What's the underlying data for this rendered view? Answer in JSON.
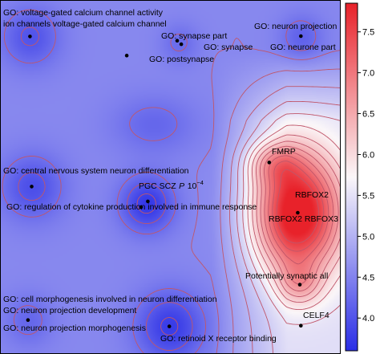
{
  "chart_data": {
    "type": "heatmap",
    "title": "",
    "xlabel": "",
    "ylabel": "",
    "colorbar": {
      "ticks": [
        "4.0",
        "4.5",
        "5.0",
        "5.5",
        "6.0",
        "6.5",
        "7.0",
        "7.5"
      ],
      "range": [
        3.6,
        7.85
      ],
      "low_color": "#2a2ee6",
      "mid_color": "#fbf7f9",
      "high_color": "#e8222a",
      "contour_color": "#c0566a"
    },
    "axes": {
      "x_range": [
        0,
        1
      ],
      "y_range": [
        0,
        1
      ],
      "ticks_shown": false,
      "grid": false
    },
    "points": [
      {
        "id": "vgcc",
        "x": 0.088,
        "y": 0.897,
        "labels": [
          "GO: voltage-gated calcium channel activity",
          "ion channels voltage-gated calcium channel"
        ]
      },
      {
        "id": "synapse-part",
        "x": 0.52,
        "y": 0.885,
        "labels": [
          "GO: synapse part"
        ]
      },
      {
        "id": "synapse",
        "x": 0.532,
        "y": 0.875,
        "labels": [
          "GO: synapse"
        ]
      },
      {
        "id": "postsynapse",
        "x": 0.372,
        "y": 0.843,
        "labels": [
          "GO: postsynapse"
        ]
      },
      {
        "id": "neuron-projection",
        "x": 0.883,
        "y": 0.898,
        "labels": [
          "GO: neuron projection",
          "GO: neurone part"
        ]
      },
      {
        "id": "fmrp",
        "x": 0.79,
        "y": 0.541,
        "labels": [
          "FMRP"
        ]
      },
      {
        "id": "cns-diff",
        "x": 0.093,
        "y": 0.473,
        "labels": [
          "GO: central nervous system neuron differentiation"
        ]
      },
      {
        "id": "pgc-scz",
        "x": 0.434,
        "y": 0.431,
        "labels": [
          "PGC SCZ P 10^-4"
        ]
      },
      {
        "id": "cytokine",
        "x": 0.414,
        "y": 0.415,
        "labels": [
          "GO: regulation of cytokine production involved in immune response"
        ]
      },
      {
        "id": "rbfox2",
        "x": 0.874,
        "y": 0.399,
        "labels": [
          "RBFOX2",
          "RBFOX2 RBFOX3"
        ]
      },
      {
        "id": "synaptic-all",
        "x": 0.88,
        "y": 0.196,
        "labels": [
          "Potentially synaptic all"
        ]
      },
      {
        "id": "morphogenesis",
        "x": 0.082,
        "y": 0.096,
        "labels": [
          "GO: cell morphogenesis involved in neuron differentiation",
          "GO: neuron projection development",
          "GO: neuron projection morphogenesis"
        ]
      },
      {
        "id": "retinoid",
        "x": 0.497,
        "y": 0.078,
        "labels": [
          "GO: retinoid X receptor binding"
        ]
      },
      {
        "id": "celf4",
        "x": 0.883,
        "y": 0.08,
        "labels": [
          "CELF4"
        ]
      }
    ],
    "texts": {
      "vgcc_1": "GO: voltage-gated calcium channel activity",
      "vgcc_2": "ion channels voltage-gated calcium channel",
      "synapse_part": "GO: synapse part",
      "synapse": "GO: synapse",
      "postsynapse": "GO: postsynapse",
      "neuron_projection": "GO: neuron projection",
      "neurone_part": "GO: neurone part",
      "fmrp": "FMRP",
      "cns": "GO: central nervous system neuron differentiation",
      "pgc": "PGC SCZ",
      "pgc_p": "P",
      "pgc_ten": "10",
      "pgc_exp": "−4",
      "cytokine": "GO: regulation of cytokine production involved in immune response",
      "rbfox2": "RBFOX2",
      "rbfox23": "RBFOX2 RBFOX3",
      "synaptic": "Potentially synaptic all",
      "morph": "GO: cell morphogenesis involved in neuron differentiation",
      "npdev": "GO: neuron projection development",
      "npmorph": "GO: neuron projection morphogenesis",
      "retinoid": "GO: retinoid X receptor binding",
      "celf4": "CELF4"
    }
  }
}
